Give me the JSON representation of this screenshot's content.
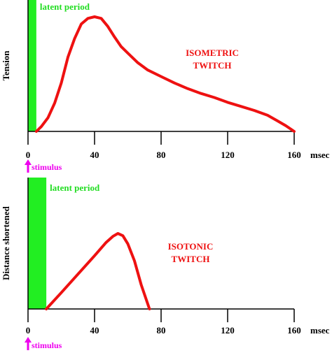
{
  "chart_data": [
    {
      "type": "line",
      "title": "",
      "ylabel": "Tension",
      "unit_label": "msec",
      "xlim": [
        0,
        160
      ],
      "x_ticks": [
        0,
        40,
        80,
        120,
        160
      ],
      "stimulus_label": "stimulus",
      "shaded_label": "latent period",
      "shaded_range": [
        0,
        5
      ],
      "annotation": [
        "ISOMETRIC",
        "TWITCH"
      ],
      "colors": {
        "line": "#ee1111",
        "shade": "#22ee22",
        "stimulus": "#ee00ee",
        "label_green": "#22dd22"
      },
      "series": [
        {
          "x": [
            5,
            8,
            12,
            16,
            20,
            24,
            28,
            32,
            36,
            40,
            44,
            48,
            52,
            56,
            60,
            66,
            72,
            80,
            88,
            96,
            104,
            112,
            120,
            128,
            136,
            144,
            150,
            155,
            160
          ],
          "y": [
            0,
            6,
            17,
            35,
            60,
            92,
            115,
            133,
            140,
            142,
            140,
            130,
            117,
            105,
            97,
            85,
            76,
            68,
            60,
            53,
            47,
            42,
            36,
            31,
            26,
            20,
            13,
            7,
            0
          ]
        }
      ]
    },
    {
      "type": "line",
      "title": "",
      "ylabel": "Distance shortened",
      "unit_label": "msec",
      "xlim": [
        0,
        160
      ],
      "x_ticks": [
        0,
        40,
        80,
        120,
        160
      ],
      "stimulus_label": "stimulus",
      "shaded_label": "latent period",
      "shaded_range": [
        0,
        11
      ],
      "annotation": [
        "ISOTONIC",
        "TWITCH"
      ],
      "colors": {
        "line": "#ee1111",
        "shade": "#22ee22",
        "stimulus": "#ee00ee",
        "label_green": "#22dd22"
      },
      "series": [
        {
          "x": [
            11,
            20,
            30,
            40,
            47,
            51,
            54,
            57,
            60,
            64,
            68,
            73
          ],
          "y": [
            0,
            22,
            47,
            72,
            90,
            98,
            102,
            99,
            88,
            65,
            33,
            0
          ]
        }
      ]
    }
  ]
}
